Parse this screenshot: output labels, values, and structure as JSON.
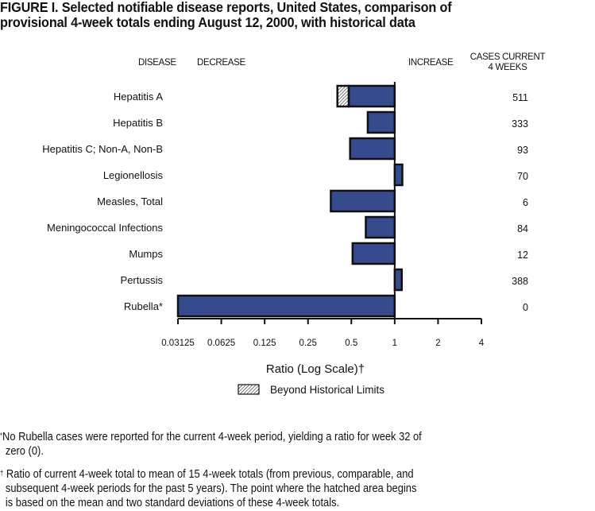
{
  "figure": {
    "title_line1": "FIGURE I.  Selected notifiable disease reports, United States, comparison of",
    "title_line2": "provisional 4-week totals ending August 12, 2000, with historical data"
  },
  "headers": {
    "disease": "DISEASE",
    "decrease": "DECREASE",
    "increase": "INCREASE",
    "cases_line1": "CASES CURRENT",
    "cases_line2": "4 WEEKS"
  },
  "footnotes": {
    "rubella_mark": "*",
    "rubella_line1": "No Rubella cases were reported for the current 4-week period, yielding a ratio for week 32 of",
    "rubella_line2": "zero (0).",
    "ratio_mark": "†",
    "ratio_line1": "Ratio of current 4-week total to mean of 15 4-week totals (from previous, comparable, and",
    "ratio_line2": "subsequent 4-week periods for the past 5 years). The point where the hatched area begins",
    "ratio_line3": "is based on the mean and two standard deviations of these 4-week totals."
  },
  "colors": {
    "bar_fill": "#364a8e",
    "bar_stroke": "#111111"
  },
  "chart_data": {
    "type": "bar",
    "orientation": "horizontal",
    "title": "Selected notifiable disease reports, United States, comparison of provisional 4-week totals ending August 12, 2000, with historical data",
    "xlabel": "Ratio (Log Scale)†",
    "ylabel": "DISEASE",
    "xscale": "log2",
    "xlim": [
      0.03125,
      4
    ],
    "baseline": 1,
    "x_ticks": [
      0.03125,
      0.0625,
      0.125,
      0.25,
      0.5,
      1,
      2,
      4
    ],
    "x_tick_labels": [
      "0.03125",
      "0.0625",
      "0.125",
      "0.25",
      "0.5",
      "1",
      "2",
      "4"
    ],
    "categories": [
      "Hepatitis A",
      "Hepatitis B",
      "Hepatitis C; Non-A, Non-B",
      "Legionellosis",
      "Measles, Total",
      "Meningococcal Infections",
      "Mumps",
      "Pertussis",
      "Rubella*"
    ],
    "values": [
      0.4,
      0.65,
      0.49,
      1.13,
      0.36,
      0.63,
      0.51,
      1.12,
      0.03125
    ],
    "beyond_historical_limits_start": [
      0.48,
      null,
      null,
      null,
      null,
      null,
      null,
      null,
      null
    ],
    "cases_current_4_weeks": [
      "511",
      "333",
      "93",
      "70",
      "6",
      "84",
      "12",
      "388",
      "0"
    ],
    "legend": [
      {
        "name": "Beyond Historical Limits",
        "pattern": "hatched"
      }
    ],
    "legend_position": "bottom-center",
    "grid": false
  }
}
